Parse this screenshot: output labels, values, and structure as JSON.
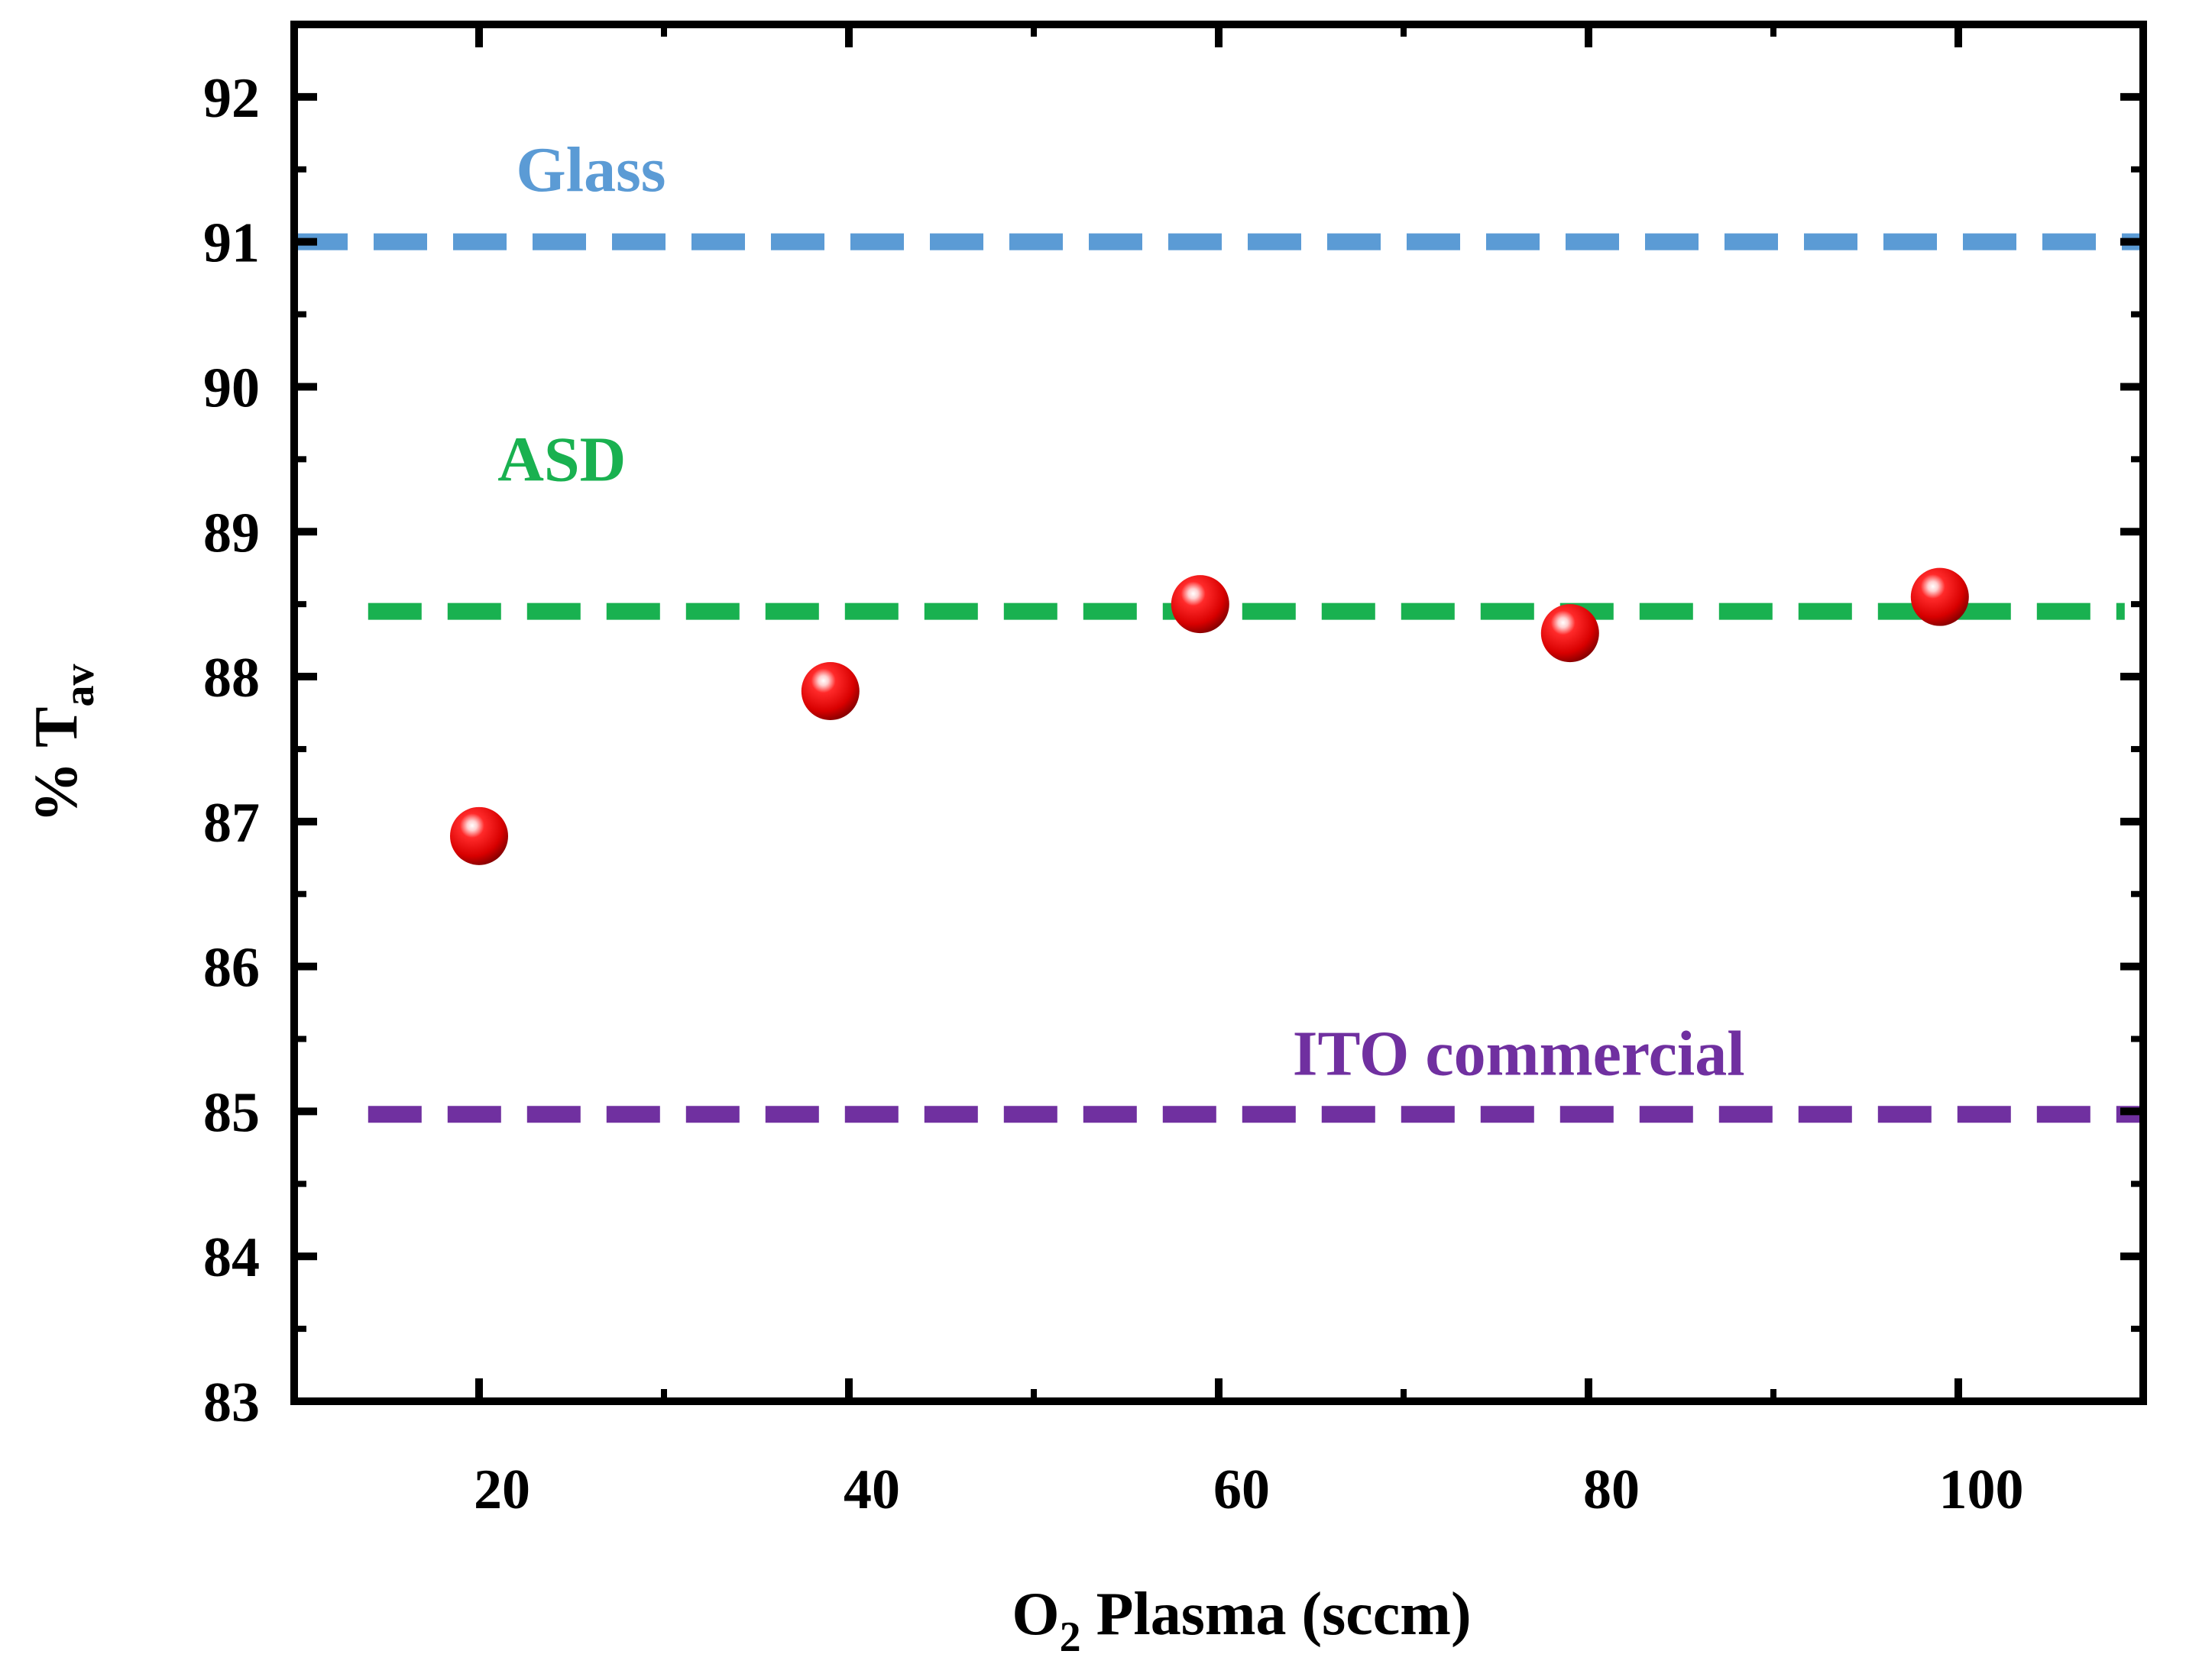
{
  "chart_data": {
    "type": "scatter",
    "title": "",
    "xlabel": {
      "main": "O",
      "sub": "2",
      "rest": " Plasma (sccm)"
    },
    "ylabel": {
      "main": "% T",
      "sub": "av"
    },
    "xlim": [
      10,
      110
    ],
    "ylim": [
      83,
      92.5
    ],
    "xticks": [
      20,
      40,
      60,
      80,
      100
    ],
    "yticks": [
      83,
      84,
      85,
      86,
      87,
      88,
      89,
      90,
      91,
      92
    ],
    "series": [
      {
        "name": "%Tav",
        "color": "#e8000b",
        "x": [
          20,
          39,
          59,
          79,
          99
        ],
        "y": [
          86.9,
          87.9,
          88.5,
          88.3,
          88.55
        ]
      }
    ],
    "reference_lines": [
      {
        "label": "Glass",
        "value": 91.0,
        "color": "#5b9bd5",
        "x_start": 10,
        "x_end": 110,
        "label_x": 22,
        "label_y": 91.5
      },
      {
        "label": "ASD",
        "value": 88.45,
        "color": "#19b150",
        "x_start": 14,
        "x_end": 109,
        "label_x": 21,
        "label_y": 89.5
      },
      {
        "label": "ITO commercial",
        "value": 84.98,
        "color": "#7030a0",
        "x_start": 14,
        "x_end": 110,
        "label_x": 64,
        "label_y": 85.4
      }
    ],
    "grid": false,
    "legend": "none"
  }
}
